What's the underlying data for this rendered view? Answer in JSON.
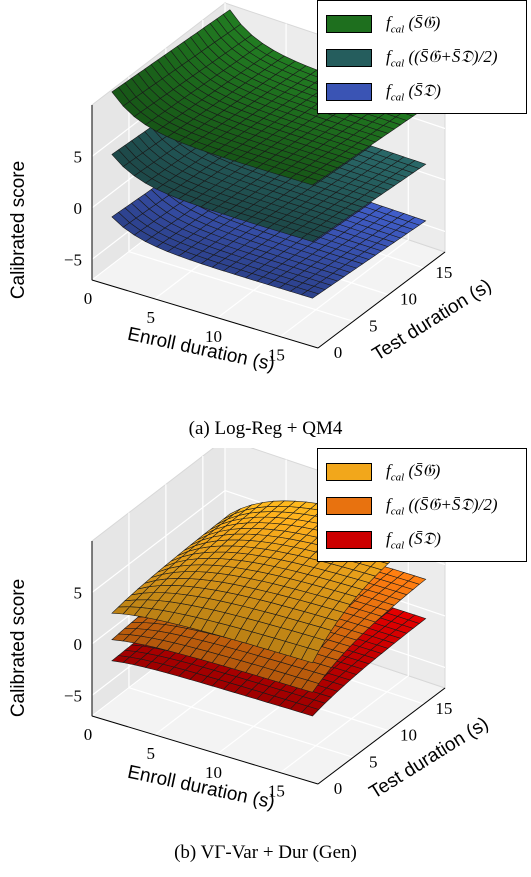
{
  "chart_data": [
    {
      "type": "surface3d",
      "caption": "(a) Log-Reg + QM4",
      "xlabel": "Enroll duration (s)",
      "ylabel": "Test duration (s)",
      "zlabel": "Calibrated score",
      "x_ticks": [
        "0",
        "5",
        "10",
        "15"
      ],
      "y_ticks": [
        "0",
        "5",
        "10",
        "15"
      ],
      "z_ticks": [
        "−5",
        "0",
        "5"
      ],
      "xlim": [
        0,
        18
      ],
      "ylim": [
        0,
        18
      ],
      "zlim": [
        -7,
        10
      ],
      "legend_position": "top-right",
      "grid": true,
      "series": [
        {
          "name": "f_cal(S̄_G)",
          "color": "#1e6f1e",
          "offset": 8,
          "peak": 5.5
        },
        {
          "name": "f_cal((S̄_G + S̄_D)/2)",
          "color": "#255d5d",
          "offset": 2.5,
          "peak": 4.5
        },
        {
          "name": "f_cal(S̄_D)",
          "color": "#3a54b4",
          "offset": -3,
          "peak": 3.5
        }
      ]
    },
    {
      "type": "surface3d",
      "caption": "(b) VΓ-Var + Dur (Gen)",
      "xlabel": "Enroll duration (s)",
      "ylabel": "Test duration (s)",
      "zlabel": "Calibrated score",
      "x_ticks": [
        "0",
        "5",
        "10",
        "15"
      ],
      "y_ticks": [
        "0",
        "5",
        "10",
        "15"
      ],
      "z_ticks": [
        "−5",
        "0",
        "5"
      ],
      "xlim": [
        0,
        18
      ],
      "ylim": [
        0,
        18
      ],
      "zlim": [
        -7,
        10
      ],
      "legend_position": "top-right",
      "grid": true,
      "series": [
        {
          "name": "f_cal(S̄_G)",
          "color": "#f2a71b",
          "offset": 3,
          "peak": 6
        },
        {
          "name": "f_cal((S̄_G + S̄_D)/2)",
          "color": "#e8720f",
          "offset": 0.5,
          "peak": 3.5
        },
        {
          "name": "f_cal(S̄_D)",
          "color": "#cc0000",
          "offset": -1.5,
          "peak": 1.5
        }
      ]
    }
  ],
  "legend_labels": {
    "g": "f",
    "g_sub": "cal",
    "g_arg": "(S̄𝔊)",
    "m_arg": "((S̄𝔊+S̄𝔇)/2)",
    "d_arg": "(S̄𝔇)"
  }
}
